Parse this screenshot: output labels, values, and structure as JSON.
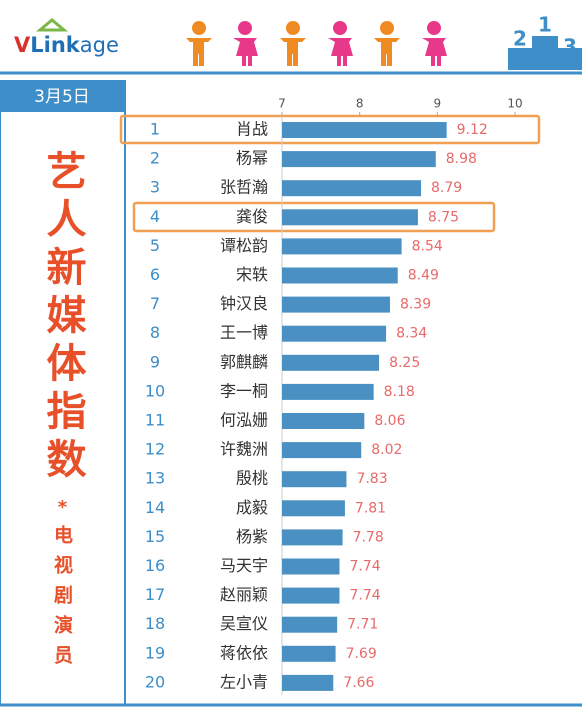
{
  "header": {
    "logo": [
      "V",
      "Link",
      "age"
    ],
    "podium": [
      "2",
      "1",
      "3"
    ],
    "date": "3月5日"
  },
  "sidebar": {
    "title": "艺人新媒体指数",
    "mark": "*",
    "subtitle": "电视剧演员"
  },
  "chart_data": {
    "type": "bar",
    "orientation": "horizontal",
    "ranks": [
      "1",
      "2",
      "3",
      "4",
      "5",
      "6",
      "7",
      "8",
      "9",
      "10",
      "11",
      "12",
      "13",
      "14",
      "15",
      "16",
      "17",
      "18",
      "19",
      "20"
    ],
    "categories": [
      "肖战",
      "杨幂",
      "张哲瀚",
      "龚俊",
      "谭松韵",
      "宋轶",
      "钟汉良",
      "王一博",
      "郭麒麟",
      "李一桐",
      "何泓姗",
      "许魏洲",
      "殷桃",
      "成毅",
      "杨紫",
      "马天宇",
      "赵丽颖",
      "吴宣仪",
      "蒋依依",
      "左小青"
    ],
    "values": [
      9.12,
      8.98,
      8.79,
      8.75,
      8.54,
      8.49,
      8.39,
      8.34,
      8.25,
      8.18,
      8.06,
      8.02,
      7.83,
      7.81,
      7.78,
      7.74,
      7.74,
      7.71,
      7.69,
      7.66
    ],
    "xlim": [
      7,
      10
    ],
    "xticks": [
      7,
      8,
      9,
      10
    ],
    "color": "#4a90c2",
    "label_color": "#e86a6a"
  }
}
